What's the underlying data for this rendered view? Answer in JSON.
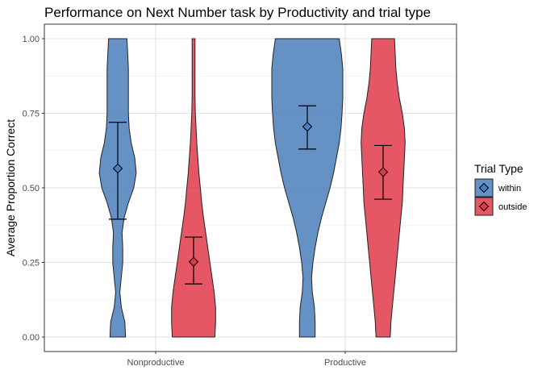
{
  "chart_data": {
    "type": "violin",
    "title": "Performance on Next Number task by Productivity and trial type",
    "xlabel": "",
    "ylabel": "Average Proportion Correct",
    "categories": [
      "Nonproductive",
      "Productive"
    ],
    "ylim": [
      0,
      1
    ],
    "yticks": [
      "0.00",
      "0.25",
      "0.50",
      "0.75",
      "1.00"
    ],
    "grid": true,
    "legend": {
      "title": "Trial Type",
      "placement": "right"
    },
    "series": [
      {
        "name": "within",
        "color": "#4a7ebb",
        "values": [
          {
            "category": "Nonproductive",
            "mean": 0.565,
            "ci_low": 0.395,
            "ci_high": 0.72,
            "density": [
              [
                0.0,
                0.22
              ],
              [
                0.05,
                0.2
              ],
              [
                0.1,
                0.1
              ],
              [
                0.15,
                0.06
              ],
              [
                0.2,
                0.1
              ],
              [
                0.25,
                0.14
              ],
              [
                0.3,
                0.14
              ],
              [
                0.35,
                0.12
              ],
              [
                0.4,
                0.18
              ],
              [
                0.45,
                0.3
              ],
              [
                0.5,
                0.45
              ],
              [
                0.55,
                0.52
              ],
              [
                0.6,
                0.48
              ],
              [
                0.65,
                0.38
              ],
              [
                0.7,
                0.32
              ],
              [
                0.75,
                0.3
              ],
              [
                0.8,
                0.3
              ],
              [
                0.85,
                0.3
              ],
              [
                0.9,
                0.3
              ],
              [
                0.95,
                0.28
              ],
              [
                1.0,
                0.26
              ]
            ]
          },
          {
            "category": "Productive",
            "mean": 0.705,
            "ci_low": 0.63,
            "ci_high": 0.775,
            "density": [
              [
                0.0,
                0.22
              ],
              [
                0.05,
                0.22
              ],
              [
                0.1,
                0.2
              ],
              [
                0.15,
                0.14
              ],
              [
                0.2,
                0.12
              ],
              [
                0.25,
                0.16
              ],
              [
                0.3,
                0.22
              ],
              [
                0.35,
                0.3
              ],
              [
                0.4,
                0.4
              ],
              [
                0.45,
                0.52
              ],
              [
                0.5,
                0.64
              ],
              [
                0.55,
                0.74
              ],
              [
                0.6,
                0.82
              ],
              [
                0.65,
                0.9
              ],
              [
                0.7,
                0.95
              ],
              [
                0.75,
                0.98
              ],
              [
                0.8,
                1.0
              ],
              [
                0.85,
                1.0
              ],
              [
                0.9,
                1.0
              ],
              [
                0.95,
                0.96
              ],
              [
                1.0,
                0.9
              ]
            ]
          }
        ]
      },
      {
        "name": "outside",
        "color": "#e0394a",
        "values": [
          {
            "category": "Nonproductive",
            "mean": 0.252,
            "ci_low": 0.178,
            "ci_high": 0.335,
            "density": [
              [
                0.0,
                0.6
              ],
              [
                0.05,
                0.62
              ],
              [
                0.1,
                0.62
              ],
              [
                0.15,
                0.58
              ],
              [
                0.2,
                0.52
              ],
              [
                0.25,
                0.46
              ],
              [
                0.3,
                0.4
              ],
              [
                0.35,
                0.34
              ],
              [
                0.4,
                0.28
              ],
              [
                0.45,
                0.23
              ],
              [
                0.5,
                0.19
              ],
              [
                0.55,
                0.15
              ],
              [
                0.6,
                0.12
              ],
              [
                0.65,
                0.09
              ],
              [
                0.7,
                0.07
              ],
              [
                0.75,
                0.05
              ],
              [
                0.8,
                0.04
              ],
              [
                0.85,
                0.04
              ],
              [
                0.9,
                0.04
              ],
              [
                0.95,
                0.04
              ],
              [
                1.0,
                0.04
              ]
            ]
          },
          {
            "category": "Productive",
            "mean": 0.553,
            "ci_low": 0.462,
            "ci_high": 0.642,
            "density": [
              [
                0.0,
                0.2
              ],
              [
                0.05,
                0.22
              ],
              [
                0.1,
                0.26
              ],
              [
                0.15,
                0.3
              ],
              [
                0.2,
                0.34
              ],
              [
                0.25,
                0.38
              ],
              [
                0.3,
                0.42
              ],
              [
                0.35,
                0.46
              ],
              [
                0.4,
                0.5
              ],
              [
                0.45,
                0.54
              ],
              [
                0.5,
                0.56
              ],
              [
                0.55,
                0.58
              ],
              [
                0.6,
                0.6
              ],
              [
                0.65,
                0.62
              ],
              [
                0.7,
                0.6
              ],
              [
                0.75,
                0.54
              ],
              [
                0.8,
                0.46
              ],
              [
                0.85,
                0.4
              ],
              [
                0.9,
                0.36
              ],
              [
                0.95,
                0.34
              ],
              [
                1.0,
                0.32
              ]
            ]
          }
        ]
      }
    ]
  }
}
